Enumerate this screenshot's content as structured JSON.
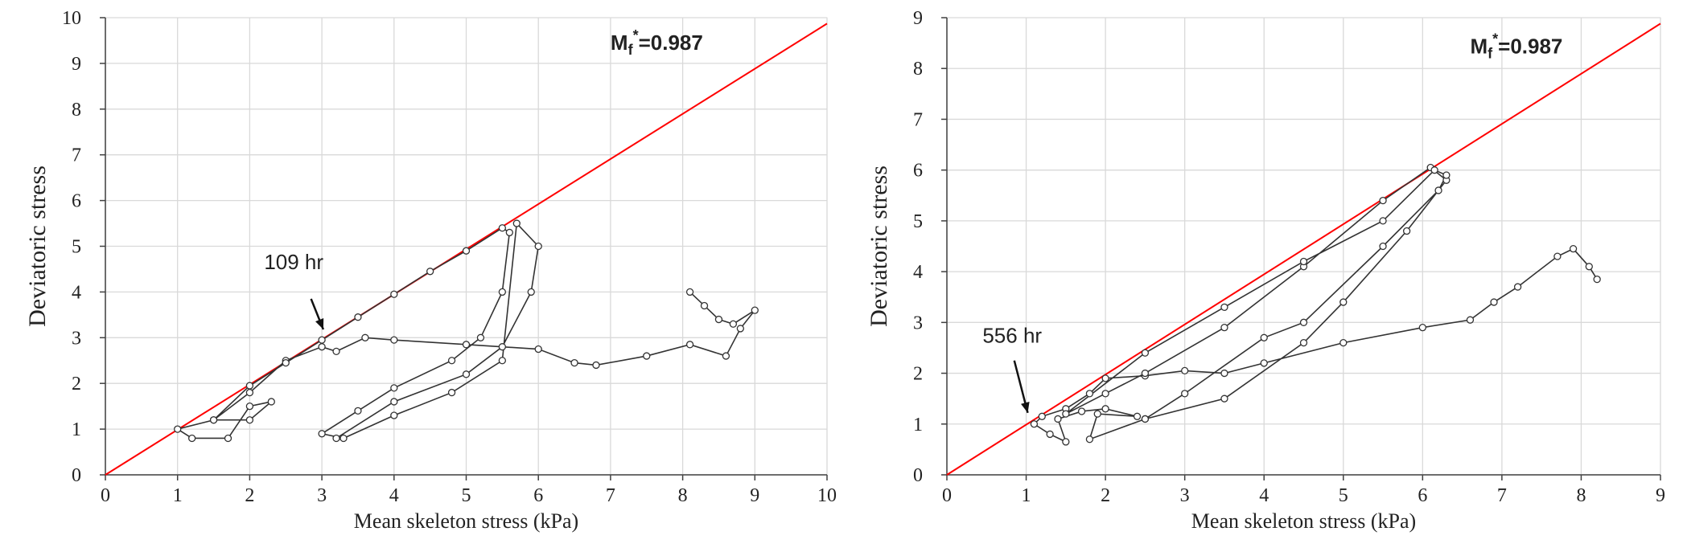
{
  "chart_data": [
    {
      "type": "line",
      "x_label": "Mean skeleton stress (kPa)",
      "y_label": "Deviatoric stress",
      "xlim": [
        0,
        10
      ],
      "ylim": [
        0,
        10
      ],
      "xticks": [
        0,
        1,
        2,
        3,
        4,
        5,
        6,
        7,
        8,
        9,
        10
      ],
      "yticks": [
        0,
        1,
        2,
        3,
        4,
        5,
        6,
        7,
        8,
        9,
        10
      ],
      "grid": true,
      "fit_line": {
        "slope": 0.987,
        "color": "#ff0000"
      },
      "fit_label": {
        "base": "M",
        "sub": "f",
        "sup": "*",
        "rest": "=0.987"
      },
      "annotation": "109 hr",
      "series": [
        {
          "color": "#333333",
          "x": [
            8.1,
            8.3,
            8.5,
            8.7,
            9.0,
            8.8,
            8.6,
            8.1,
            7.5,
            6.8,
            6.5,
            6.0,
            5.0,
            4.0,
            3.6,
            3.2,
            3.0,
            2.5,
            2.0,
            1.5,
            1.0,
            1.2,
            1.7,
            2.0,
            2.3,
            2.0,
            1.5,
            2.0,
            2.5,
            3.0,
            3.5,
            4.0,
            4.5,
            5.0,
            5.5,
            5.6,
            5.5,
            5.2,
            4.8,
            4.0,
            3.5,
            3.0,
            3.3,
            4.0,
            4.8,
            5.5,
            5.7,
            6.0,
            5.9,
            5.5,
            5.0,
            4.0,
            3.2
          ],
          "values": [
            4.0,
            3.7,
            3.4,
            3.3,
            3.6,
            3.2,
            2.6,
            2.85,
            2.6,
            2.4,
            2.45,
            2.75,
            2.85,
            2.95,
            3.0,
            2.7,
            2.8,
            2.5,
            1.8,
            1.2,
            1.0,
            0.8,
            0.8,
            1.5,
            1.6,
            1.2,
            1.2,
            1.95,
            2.45,
            2.95,
            3.45,
            3.95,
            4.45,
            4.9,
            5.4,
            5.3,
            4.0,
            3.0,
            2.5,
            1.9,
            1.4,
            0.9,
            0.8,
            1.3,
            1.8,
            2.5,
            5.5,
            5.0,
            4.0,
            2.8,
            2.2,
            1.6,
            0.8
          ]
        }
      ]
    },
    {
      "type": "line",
      "x_label": "Mean skeleton stress (kPa)",
      "y_label": "Deviatoric stress",
      "xlim": [
        0,
        9
      ],
      "ylim": [
        0,
        9
      ],
      "xticks": [
        0,
        1,
        2,
        3,
        4,
        5,
        6,
        7,
        8,
        9
      ],
      "yticks": [
        0,
        1,
        2,
        3,
        4,
        5,
        6,
        7,
        8,
        9
      ],
      "grid": true,
      "fit_line": {
        "slope": 0.987,
        "color": "#ff0000"
      },
      "fit_label": {
        "base": "M",
        "sub": "f",
        "sup": "*",
        "rest": "=0.987"
      },
      "annotation": "556 hr",
      "series": [
        {
          "color": "#333333",
          "x": [
            8.2,
            8.1,
            7.9,
            7.7,
            7.2,
            6.9,
            6.6,
            6.0,
            5.0,
            4.0,
            3.5,
            3.0,
            2.5,
            2.0,
            1.8,
            1.5,
            1.2,
            1.1,
            1.3,
            1.5,
            1.4,
            1.7,
            2.0,
            2.4,
            1.9,
            1.8,
            2.5,
            3.5,
            4.5,
            5.0,
            5.8,
            6.3,
            6.1,
            5.5,
            4.5,
            3.5,
            2.5,
            2.0,
            1.5,
            2.5,
            3.5,
            4.5,
            5.5,
            6.15,
            6.3,
            6.2,
            5.5,
            4.5,
            4.0,
            3.0,
            2.5
          ],
          "values": [
            3.85,
            4.1,
            4.45,
            4.3,
            3.7,
            3.4,
            3.05,
            2.9,
            2.6,
            2.2,
            2.0,
            2.05,
            1.95,
            1.9,
            1.6,
            1.3,
            1.15,
            1.0,
            0.8,
            0.65,
            1.1,
            1.25,
            1.3,
            1.15,
            1.2,
            0.7,
            1.1,
            1.5,
            2.6,
            3.4,
            4.8,
            5.8,
            6.05,
            5.4,
            4.1,
            2.9,
            2.0,
            1.6,
            1.2,
            2.4,
            3.3,
            4.2,
            5.0,
            6.0,
            5.9,
            5.6,
            4.5,
            3.0,
            2.7,
            1.6,
            1.1
          ]
        }
      ]
    }
  ]
}
